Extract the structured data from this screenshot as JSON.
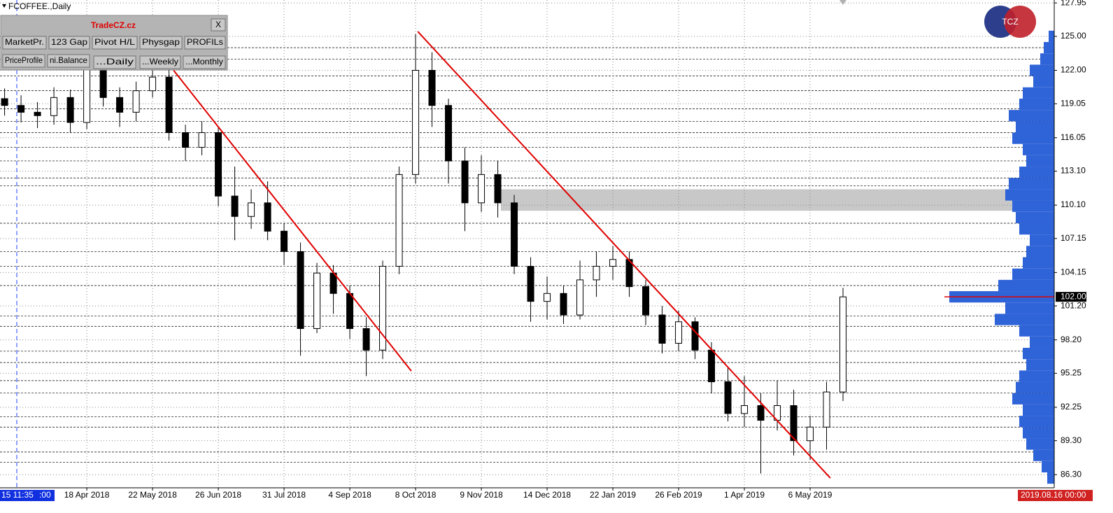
{
  "chart_data": {
    "type": "candlestick",
    "title": "FCOFFEE.,Daily",
    "x": [
      -5,
      -4,
      -3,
      -2,
      -1,
      0,
      1,
      2,
      3,
      4,
      5,
      6,
      7,
      8,
      9,
      10,
      11,
      12,
      13,
      14,
      15,
      16,
      17,
      18,
      19,
      20,
      21,
      22,
      23,
      24,
      25,
      26,
      27,
      28,
      29,
      30,
      31,
      32,
      33,
      34,
      35,
      36,
      37,
      38,
      39,
      40,
      41,
      42,
      43,
      44,
      45,
      46
    ],
    "open": [
      119.5,
      118.9,
      118.3,
      118.0,
      119.6,
      117.4,
      123.3,
      119.6,
      118.3,
      120.2,
      121.4,
      116.5,
      115.2,
      116.5,
      110.9,
      109.1,
      110.3,
      107.8,
      106.0,
      99.2,
      104.1,
      102.3,
      99.2,
      97.3,
      104.7,
      112.8,
      122.0,
      118.9,
      114.0,
      110.3,
      112.8,
      110.3,
      104.7,
      101.6,
      102.3,
      100.4,
      103.5,
      104.7,
      105.3,
      102.9,
      100.4,
      97.9,
      99.8,
      97.3,
      94.5,
      91.7,
      92.4,
      91.1,
      92.4,
      89.3,
      90.5,
      93.6
    ],
    "high": [
      120.4,
      119.8,
      119.2,
      120.5,
      120.3,
      125.6,
      124.0,
      120.5,
      121.0,
      123.2,
      122.0,
      117.2,
      117.5,
      117.0,
      113.5,
      111.5,
      112.2,
      108.5,
      106.8,
      105.0,
      104.8,
      103.0,
      100.2,
      105.2,
      113.5,
      125.2,
      123.6,
      119.5,
      115.2,
      114.5,
      114.0,
      111.0,
      105.5,
      103.8,
      103.0,
      105.2,
      106.0,
      106.5,
      106.0,
      103.5,
      101.2,
      100.8,
      100.2,
      98.0,
      95.8,
      95.0,
      93.5,
      94.6,
      93.8,
      91.5,
      94.5,
      102.8
    ],
    "low": [
      118.0,
      117.4,
      116.9,
      117.2,
      116.5,
      116.8,
      118.8,
      117.0,
      117.5,
      119.6,
      115.8,
      114.0,
      114.5,
      110.0,
      107.0,
      108.0,
      107.0,
      104.8,
      96.8,
      98.8,
      100.5,
      98.3,
      95.0,
      96.5,
      104.0,
      112.0,
      117.0,
      112.0,
      107.8,
      109.5,
      109.0,
      104.0,
      99.8,
      100.0,
      99.6,
      100.0,
      102.0,
      103.5,
      102.0,
      99.5,
      97.0,
      97.2,
      96.5,
      93.5,
      91.0,
      90.5,
      86.4,
      90.2,
      88.0,
      87.6,
      88.5,
      92.8
    ],
    "close": [
      118.9,
      118.3,
      118.0,
      119.6,
      117.4,
      123.3,
      119.6,
      118.3,
      120.2,
      121.4,
      116.5,
      115.2,
      116.5,
      110.9,
      109.1,
      110.3,
      107.8,
      106.0,
      99.2,
      104.1,
      102.3,
      99.2,
      97.3,
      104.7,
      112.8,
      122.0,
      118.9,
      114.0,
      110.3,
      112.8,
      110.3,
      104.7,
      101.6,
      102.3,
      100.4,
      103.5,
      104.7,
      105.3,
      102.9,
      100.4,
      97.9,
      99.8,
      97.3,
      94.5,
      91.7,
      92.4,
      91.1,
      92.4,
      89.3,
      90.5,
      93.6,
      102.0
    ],
    "xlim": [
      -5.28,
      58.85
    ],
    "xticks": [
      {
        "value": 0,
        "label": "18 Apr 2018"
      },
      {
        "value": 4,
        "label": "22 May 2018"
      },
      {
        "value": 8,
        "label": "26 Jun 2018"
      },
      {
        "value": 12,
        "label": "31 Jul 2018"
      },
      {
        "value": 16,
        "label": "4 Sep 2018"
      },
      {
        "value": 20,
        "label": "8 Oct 2018"
      },
      {
        "value": 24,
        "label": "9 Nov 2018"
      },
      {
        "value": 28,
        "label": "14 Dec 2018"
      },
      {
        "value": 32,
        "label": "22 Jan 2019"
      },
      {
        "value": 36,
        "label": "26 Feb 2019"
      },
      {
        "value": 40,
        "label": "1 Apr 2019"
      },
      {
        "value": 44,
        "label": "6 May 2019"
      }
    ],
    "ylim": [
      85.14,
      128.21
    ],
    "yticks": [
      127.95,
      {
        "value": 125,
        "label": "125.00"
      },
      {
        "value": 122,
        "label": "122.00"
      },
      119.05,
      116.05,
      {
        "value": 113.1,
        "label": "113.10"
      },
      {
        "value": 110.1,
        "label": "110.10"
      },
      107.15,
      104.15,
      {
        "value": 101.2,
        "label": "101.20"
      },
      {
        "value": 98.2,
        "label": "98.20"
      },
      95.25,
      92.25,
      {
        "value": 89.3,
        "label": "89.30"
      },
      {
        "value": 86.3,
        "label": "86.30"
      }
    ],
    "levels": [
      124.0,
      123.0,
      121.5,
      120.2,
      118.6,
      117.5,
      116.5,
      115.2,
      114.0,
      112.5,
      111.8,
      108.5,
      106.0,
      104.7,
      103.0,
      100.3,
      99.4,
      97.2,
      96.2,
      94.6,
      93.5,
      91.4,
      90.5,
      88.3,
      87.4
    ],
    "trendlines": [
      {
        "x": [
          5.28,
          19.74
        ],
        "y": [
          122.0,
          95.45
        ],
        "color": "#e00000"
      },
      {
        "x": [
          20.13,
          45.23
        ],
        "y": [
          125.43,
          86.0
        ],
        "color": "#e00000"
      }
    ],
    "zone": {
      "x": 25.19,
      "y": [
        109.6,
        111.5
      ],
      "color": "#c8c8c8"
    },
    "price_line": {
      "value": 102,
      "label": "102.00",
      "color": "#e00000"
    },
    "profile": {
      "color": "#2f63d8",
      "xlim": [
        0,
        160
      ],
      "prices": [
        86,
        87,
        88,
        89,
        90,
        91,
        92,
        93,
        94,
        95,
        96,
        97,
        98,
        99,
        100,
        101,
        102,
        103,
        104,
        105,
        106,
        107,
        108,
        109,
        110,
        111,
        112,
        113,
        114,
        115,
        116,
        117,
        118,
        119,
        120,
        121,
        122,
        123,
        124,
        125
      ],
      "volumes": [
        10,
        18,
        30,
        40,
        45,
        50,
        45,
        60,
        55,
        50,
        40,
        45,
        35,
        50,
        85,
        70,
        150,
        80,
        60,
        45,
        40,
        35,
        50,
        55,
        60,
        70,
        65,
        50,
        40,
        45,
        60,
        55,
        65,
        50,
        45,
        30,
        35,
        20,
        15,
        8
      ]
    },
    "start_time": "15 11:35",
    "start_time_tail": ":00",
    "end_time": "2019.08.16 00:00"
  },
  "panel": {
    "title": "TradeCZ.cz",
    "close": "X",
    "buttons": [
      "MarketPr.",
      "123 Gap",
      "Pivot H/L",
      "Physgap",
      "PROFILs",
      "PriceProfile",
      "ni.Balance",
      "...Daily",
      "...Weekly",
      "...Monthly"
    ]
  },
  "logo": "TCZ"
}
